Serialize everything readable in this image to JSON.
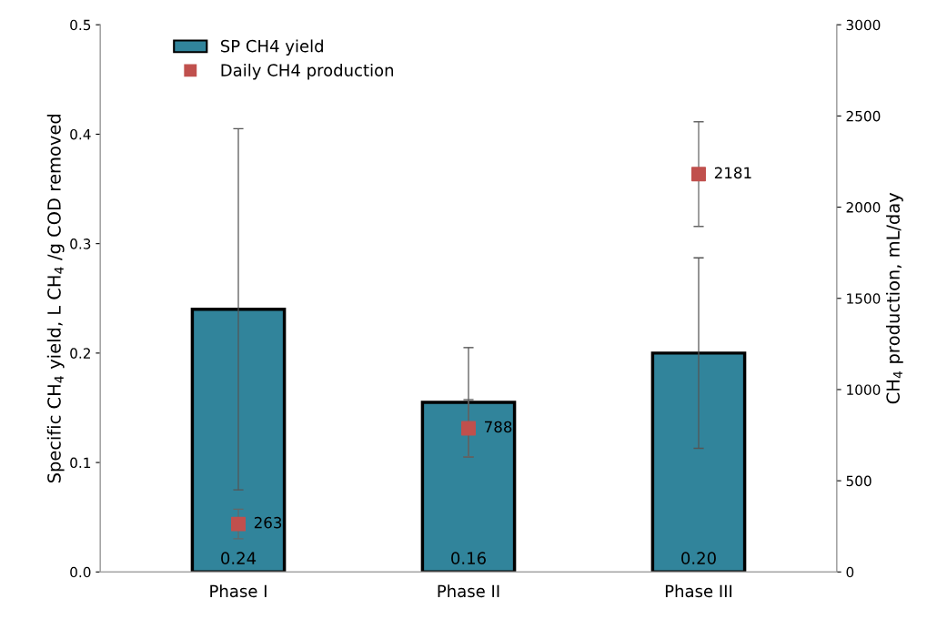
{
  "chart_data": {
    "type": "bar",
    "ylabel": "Specific CH$_{4}$ yield, L CH$_{4}$ /g COD removed",
    "y2label": "CH$_{4}$ production, mL/day",
    "categories": [
      "Phase I",
      "Phase II",
      "Phase III"
    ],
    "series": [
      {
        "name": "SP CH4 yield",
        "color": "#31849b",
        "values": [
          0.24,
          0.155,
          0.2
        ],
        "errors": [
          0.165,
          0.05,
          0.087
        ],
        "value_labels": [
          "0.24",
          "0.16",
          "0.20"
        ]
      },
      {
        "name": "Daily CH4 production",
        "type": "scatter",
        "axis": "y2",
        "marker": "square",
        "color": "#c0504d",
        "values": [
          263,
          788,
          2181
        ],
        "errors": [
          81,
          157,
          287
        ],
        "value_labels": [
          "263",
          "788",
          "2181"
        ]
      }
    ],
    "ylim": [
      0,
      0.5
    ],
    "yticks": [
      {
        "value": 0,
        "label": "0.0"
      },
      0.1,
      0.2,
      0.3,
      0.4,
      0.5
    ],
    "y2lim": [
      0,
      3000
    ],
    "y2ticks": [
      0,
      500,
      1000,
      1500,
      2000,
      2500,
      3000
    ],
    "grid": false,
    "legend": "top left"
  }
}
